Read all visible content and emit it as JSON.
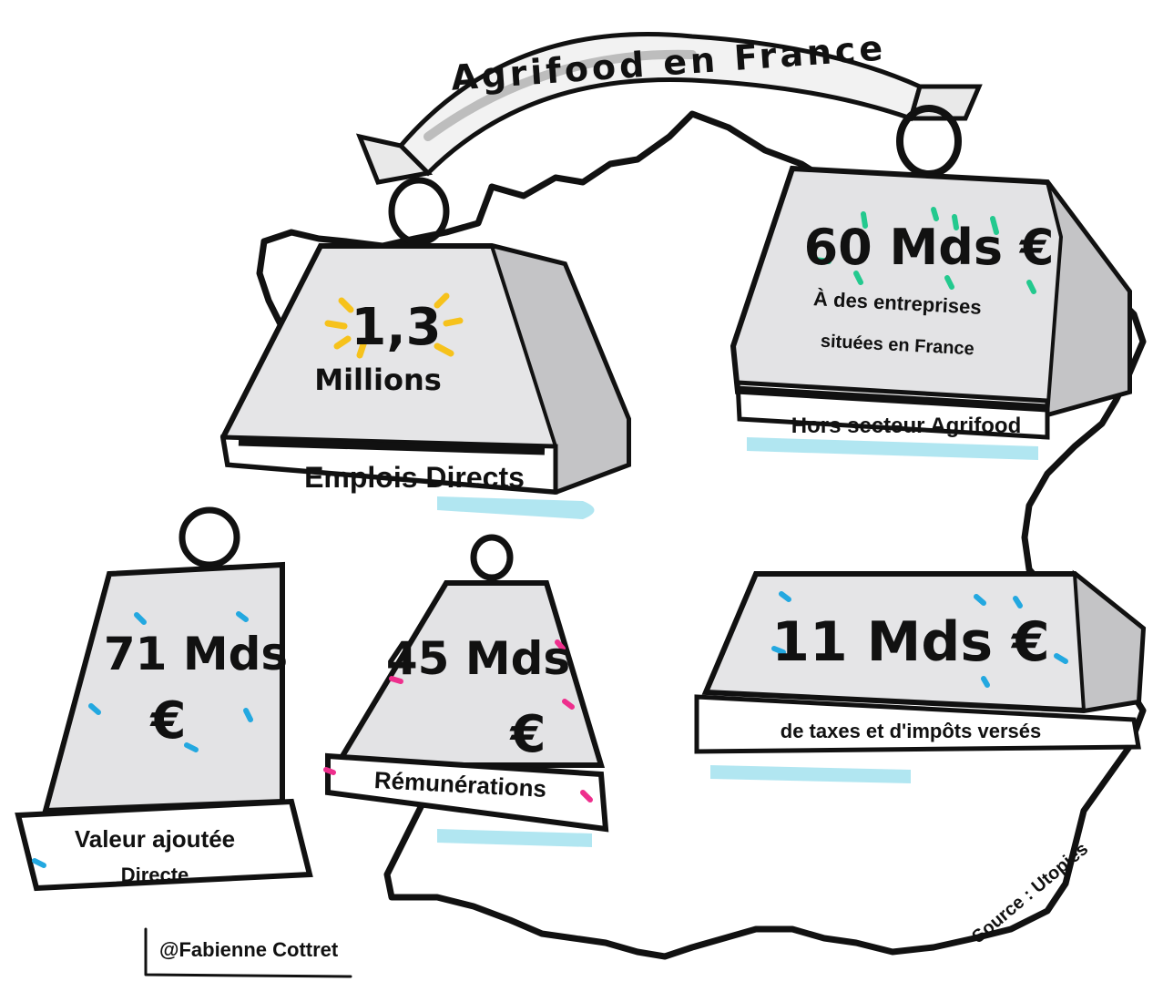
{
  "banner": {
    "title": "Agrifood en France"
  },
  "weights": {
    "jobs": {
      "value": "1,3",
      "unit": "Millions",
      "label": "Emplois Directs"
    },
    "business": {
      "value": "60 Mds €",
      "desc_line1": "À des entreprises",
      "desc_line2": "situées en France",
      "label": "Hors secteur Agrifood"
    },
    "value_added": {
      "value": "71 Mds",
      "currency": "€",
      "label_line1": "Valeur ajoutée",
      "label_line2": "Directe"
    },
    "wages": {
      "value": "45 Mds",
      "currency": "€",
      "label": "Rémunérations"
    },
    "taxes": {
      "value": "11 Mds €",
      "label": "de taxes et d'impôts versés"
    }
  },
  "credits": {
    "author": "@Fabienne Cottret",
    "source": "Source : Utopies"
  },
  "colors": {
    "ink": "#111111",
    "metal": "#d7d7d9",
    "shadow": "#a9e3ef",
    "yellow": "#f6c21c",
    "green": "#23c98e",
    "cyan": "#23a8e0",
    "pink": "#ee2f8d"
  }
}
